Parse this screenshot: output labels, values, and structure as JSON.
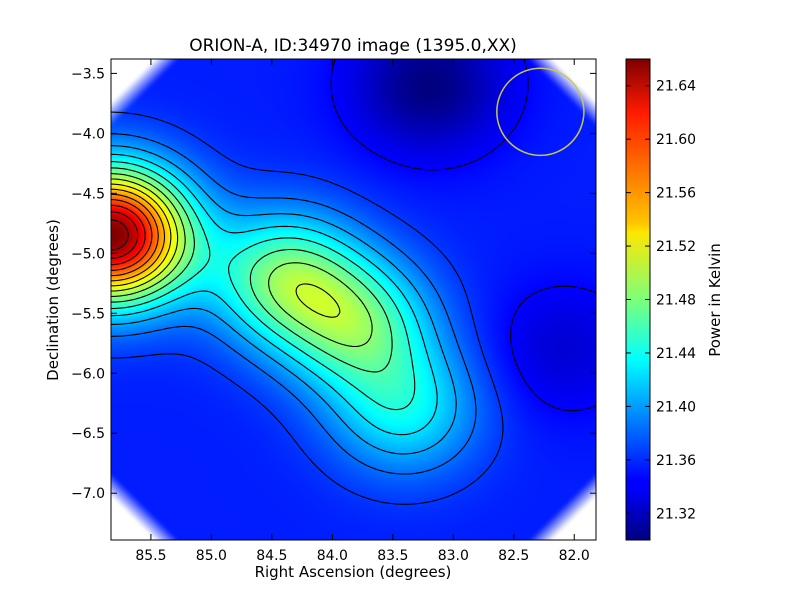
{
  "chart_data": {
    "type": "heatmap",
    "title": "ORION-A, ID:34970 image (1395.0,XX)",
    "xlabel": "Right Ascension (degrees)",
    "ylabel": "Declination (degrees)",
    "colorbar_label": "Power in Kelvin",
    "xlim": [
      85.83,
      81.82
    ],
    "ylim": [
      -7.39,
      -3.38
    ],
    "x_ticks": [
      85.5,
      85.0,
      84.5,
      84.0,
      83.5,
      83.0,
      82.5,
      82.0
    ],
    "x_tick_labels": [
      "85.5",
      "85.0",
      "84.5",
      "84.0",
      "83.5",
      "83.0",
      "82.5",
      "82.0"
    ],
    "y_ticks": [
      -3.5,
      -4.0,
      -4.5,
      -5.0,
      -5.5,
      -6.0,
      -6.5,
      -7.0
    ],
    "y_tick_labels": [
      "−3.5",
      "−4.0",
      "−4.5",
      "−5.0",
      "−5.5",
      "−6.0",
      "−6.5",
      "−7.0"
    ],
    "colorbar_range": [
      21.3,
      21.66
    ],
    "colorbar_ticks": [
      21.32,
      21.36,
      21.4,
      21.44,
      21.48,
      21.52,
      21.56,
      21.6,
      21.64
    ],
    "colorbar_tick_labels": [
      "21.32",
      "21.36",
      "21.40",
      "21.44",
      "21.48",
      "21.52",
      "21.56",
      "21.60",
      "21.64"
    ],
    "colormap": "jet",
    "field_features": [
      {
        "type": "maximum",
        "x": 85.82,
        "y": -4.85,
        "value": 21.66
      },
      {
        "type": "ridge",
        "x": 84.4,
        "y": -5.2,
        "value": 21.47
      },
      {
        "type": "ridge",
        "x": 83.8,
        "y": -5.6,
        "value": 21.46
      },
      {
        "type": "ridge",
        "x": 83.4,
        "y": -6.3,
        "value": 21.43
      },
      {
        "type": "minimum",
        "x": 83.2,
        "y": -3.6,
        "value": 21.3
      },
      {
        "type": "minimum",
        "x": 82.1,
        "y": -5.8,
        "value": 21.33
      }
    ],
    "annotations": [
      {
        "type": "circle",
        "x": 82.28,
        "y": -3.82,
        "radius_deg": 0.36,
        "color": "#c8c84a"
      }
    ],
    "grid": false
  }
}
